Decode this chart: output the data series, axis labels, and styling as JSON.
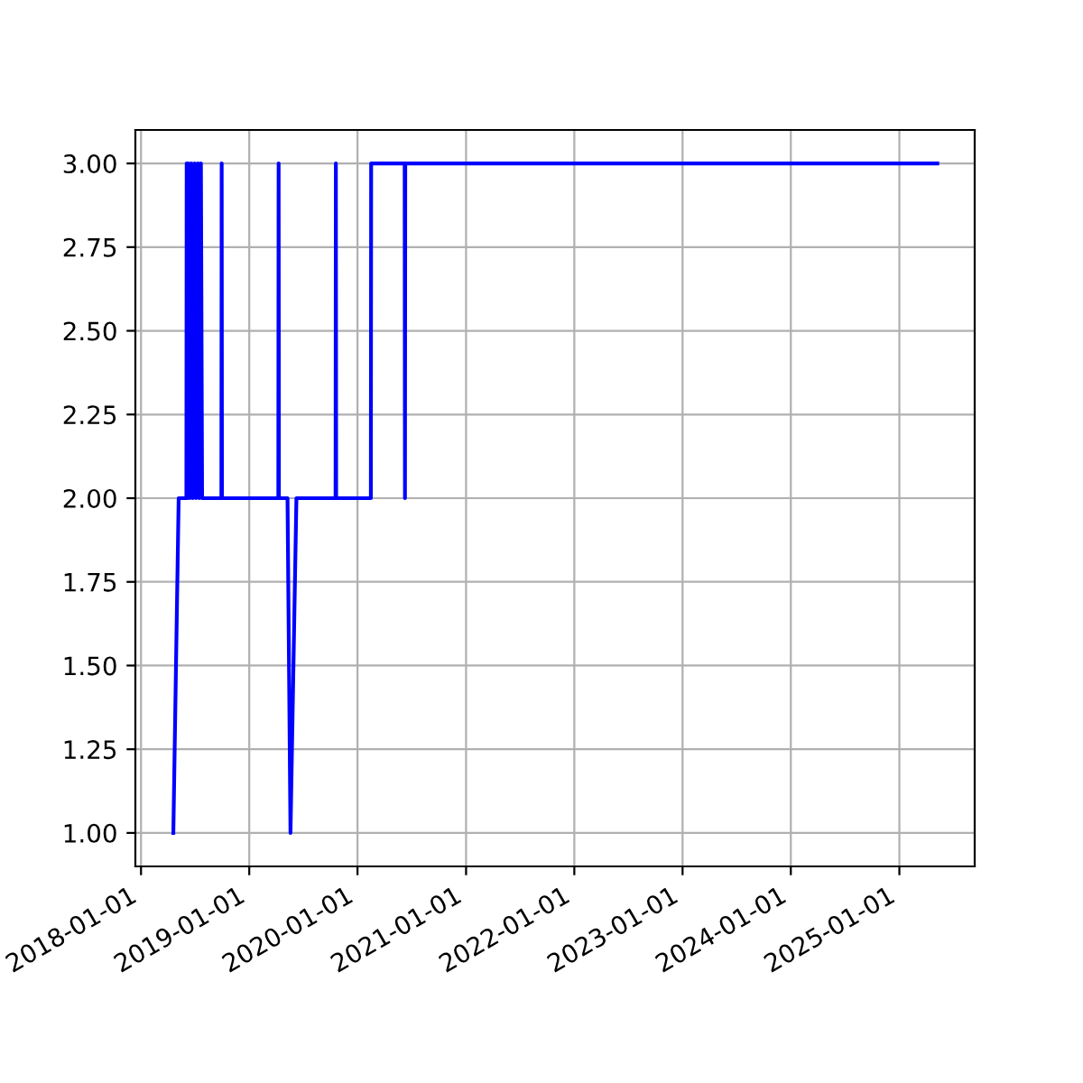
{
  "chart_data": {
    "type": "line",
    "x": [
      "2018-04-20",
      "2018-05-08",
      "2018-06-03",
      "2018-06-04",
      "2018-06-06",
      "2018-06-10",
      "2018-06-14",
      "2018-06-20",
      "2018-06-24",
      "2018-07-01",
      "2018-07-05",
      "2018-07-12",
      "2018-07-16",
      "2018-07-22",
      "2018-07-26",
      "2018-09-29",
      "2018-09-30",
      "2018-10-01",
      "2019-04-09",
      "2019-04-10",
      "2019-04-11",
      "2019-05-10",
      "2019-05-20",
      "2019-06-09",
      "2019-10-19",
      "2019-10-20",
      "2019-10-21",
      "2020-02-15",
      "2020-02-16",
      "2020-06-08",
      "2020-06-09",
      "2020-06-10",
      "2025-05-09"
    ],
    "series": [
      {
        "color": "#0000ff",
        "values": [
          1,
          2,
          2,
          3,
          2,
          3,
          2,
          3,
          2,
          3,
          2,
          3,
          2,
          3,
          2,
          2,
          3,
          2,
          2,
          3,
          2,
          2,
          1,
          2,
          2,
          3,
          2,
          2,
          3,
          3,
          2,
          3,
          3
        ]
      }
    ],
    "xlim": [
      "2017-12-13",
      "2025-09-12"
    ],
    "xticks": [
      "2018-01-01",
      "2019-01-01",
      "2020-01-01",
      "2021-01-01",
      "2022-01-01",
      "2023-01-01",
      "2024-01-01",
      "2025-01-01"
    ],
    "ylim": [
      0.9,
      3.1
    ],
    "yticks": [
      {
        "value": 1,
        "label": "1.00"
      },
      {
        "value": 1.25,
        "label": "1.25"
      },
      {
        "value": 1.5,
        "label": "1.50"
      },
      {
        "value": 1.75,
        "label": "1.75"
      },
      {
        "value": 2,
        "label": "2.00"
      },
      {
        "value": 2.25,
        "label": "2.25"
      },
      {
        "value": 2.5,
        "label": "2.50"
      },
      {
        "value": 2.75,
        "label": "2.75"
      },
      {
        "value": 3,
        "label": "3.00"
      }
    ],
    "grid": true
  }
}
